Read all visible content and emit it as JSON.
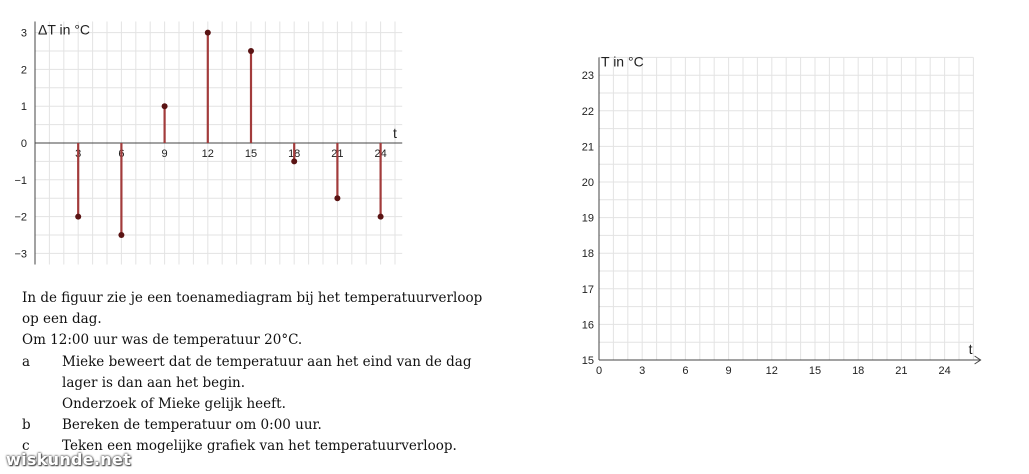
{
  "chart_data": [
    {
      "type": "bar",
      "title": "",
      "ylabel": "ΔT in °C",
      "xlabel": "t",
      "x": [
        3,
        6,
        9,
        12,
        15,
        18,
        21,
        24
      ],
      "values": [
        -2,
        -2.5,
        1,
        3,
        2.5,
        -0.5,
        -1.5,
        -2
      ],
      "yticks": [
        -3,
        -2,
        -1,
        0,
        1,
        2,
        3
      ],
      "xticks": [
        "3",
        "6",
        "9",
        "12",
        "15",
        "18",
        "21",
        "24"
      ],
      "ylim": [
        -3.3,
        3.3
      ],
      "xlim": [
        0,
        25.5
      ],
      "grid": true,
      "color": "#a23b3b"
    },
    {
      "type": "line",
      "title": "",
      "ylabel": "T in °C",
      "xlabel": "t",
      "series": [],
      "yticks": [
        "15",
        "16",
        "17",
        "18",
        "19",
        "20",
        "21",
        "22",
        "23"
      ],
      "xticks": [
        "0",
        "3",
        "6",
        "9",
        "12",
        "15",
        "18",
        "21",
        "24"
      ],
      "ylim": [
        15,
        23.5
      ],
      "xlim": [
        0,
        26
      ],
      "grid": true
    }
  ],
  "exercise": {
    "intro_line1": "In de figuur zie je een toenamediagram bij het temperatuurverloop",
    "intro_line2": "op een dag.",
    "intro_line3": "Om 12:00 uur was de temperatuur 20°C.",
    "questions": [
      {
        "letter": "a",
        "lines": [
          "Mieke beweert dat de temperatuur aan het eind van de dag",
          "lager is dan aan het begin.",
          "Onderzoek of Mieke gelijk heeft."
        ]
      },
      {
        "letter": "b",
        "lines": [
          "Bereken de temperatuur om 0:00 uur."
        ]
      },
      {
        "letter": "c",
        "lines": [
          "Teken een mogelijke grafiek van het temperatuurverloop."
        ]
      }
    ]
  },
  "watermark": "wiskunde.net"
}
